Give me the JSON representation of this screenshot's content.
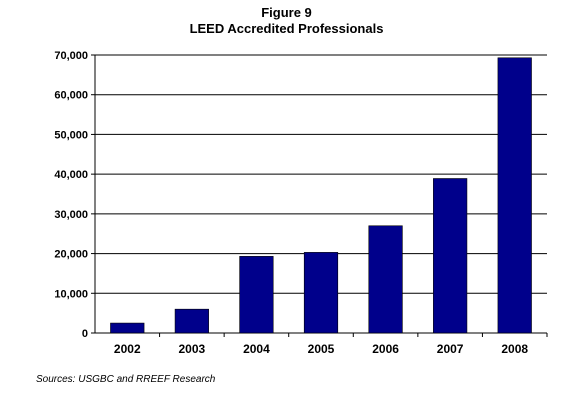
{
  "chart_data": {
    "type": "bar",
    "title": "Figure 9",
    "subtitle": "LEED Accredited Professionals",
    "categories": [
      "2002",
      "2003",
      "2004",
      "2005",
      "2006",
      "2007",
      "2008"
    ],
    "values": [
      2500,
      6000,
      19300,
      20300,
      27000,
      38900,
      69300
    ],
    "ylim": [
      0,
      70000
    ],
    "ytick_values": [
      0,
      10000,
      20000,
      30000,
      40000,
      50000,
      60000,
      70000
    ],
    "ytick_labels": [
      "0",
      "10,000",
      "20,000",
      "30,000",
      "40,000",
      "50,000",
      "60,000",
      "70,000"
    ],
    "xlabel": "",
    "ylabel": "",
    "grid": true,
    "bar_color": "#00008b",
    "source": "Sources: USGBC and RREEF Research"
  }
}
